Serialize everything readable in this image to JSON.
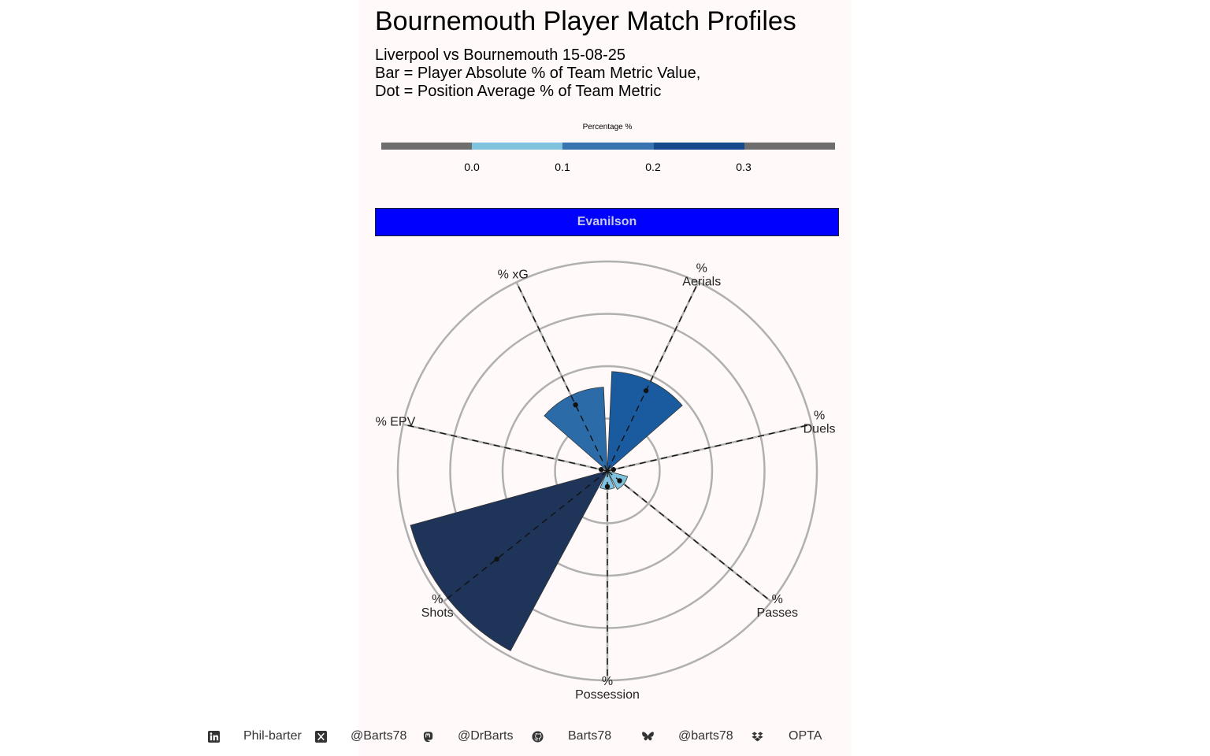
{
  "title": "Bournemouth Player Match Profiles",
  "subtitle": [
    "Liverpool vs Bournemouth 15-08-25",
    "Bar = Player Absolute % of Team Metric Value,",
    "Dot = Position Average % of Team Metric"
  ],
  "legend": {
    "title": "Percentage %",
    "ticks": [
      "0.0",
      "0.1",
      "0.2",
      "0.3"
    ],
    "colors": [
      "#6e6e6e",
      "#7fc3df",
      "#3875b0",
      "#164a8c",
      "#6e6e6e"
    ]
  },
  "player": "Evanilson",
  "colors": {
    "strip": "#0000ff",
    "grid": "#b0b0b0",
    "bar_outline": "#333333"
  },
  "chart_data": {
    "type": "polar-bar",
    "categories": [
      "% Aerials",
      "% Duels",
      "% Passes",
      "% Possession",
      "% Shots",
      "% EPV",
      "% xG"
    ],
    "label_lines": [
      [
        "%",
        "Aerials"
      ],
      [
        "%",
        "Duels"
      ],
      [
        "%",
        "Passes"
      ],
      [
        "%",
        "Possession"
      ],
      [
        "%",
        "Shots"
      ],
      [
        "% EPV"
      ],
      [
        "% xG"
      ]
    ],
    "values": [
      0.19,
      0.0,
      0.04,
      0.035,
      0.39,
      0.0,
      0.16
    ],
    "position_average": [
      0.17,
      0.01,
      0.03,
      0.03,
      0.27,
      0.01,
      0.14
    ],
    "bar_colors": [
      "#1a5a9e",
      "#7fc3df",
      "#7fc3df",
      "#7fc3df",
      "#1e3459",
      "#7fc3df",
      "#2b6ca8"
    ],
    "ylim": [
      0,
      0.4
    ],
    "grid_values": [
      0.1,
      0.2,
      0.3,
      0.4
    ]
  },
  "footer": [
    {
      "icon": "linkedin-icon",
      "text": "Phil-barter"
    },
    {
      "icon": "x-icon",
      "text": "@Barts78"
    },
    {
      "icon": "mastodon-icon",
      "text": "@DrBarts"
    },
    {
      "icon": "github-icon",
      "text": "Barts78"
    },
    {
      "icon": "bluesky-icon",
      "text": "@barts78"
    },
    {
      "icon": "dropbox-icon",
      "text": "OPTA"
    }
  ]
}
